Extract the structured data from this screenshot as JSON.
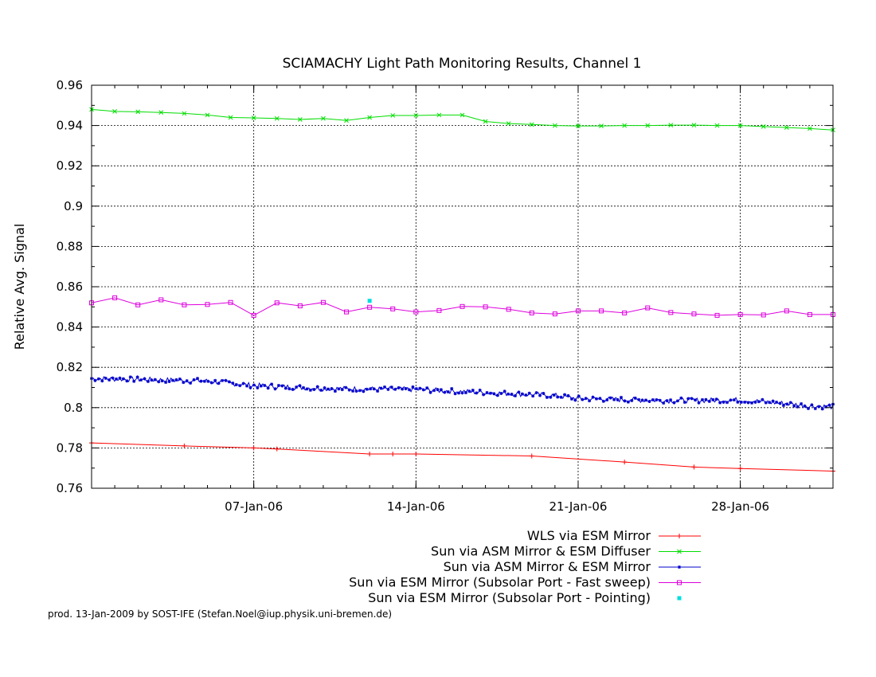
{
  "chart_data": {
    "type": "line",
    "title": "SCIAMACHY Light Path Monitoring Results, Channel 1",
    "ylabel": "Relative Avg. Signal",
    "xlabel": "",
    "x_axis": "date",
    "xlim": [
      "2005-12-31",
      "2006-02-01"
    ],
    "ylim": [
      0.76,
      0.96
    ],
    "x_ticks": [
      {
        "date": "2006-01-07",
        "label": "07-Jan-06"
      },
      {
        "date": "2006-01-14",
        "label": "14-Jan-06"
      },
      {
        "date": "2006-01-21",
        "label": "21-Jan-06"
      },
      {
        "date": "2006-01-28",
        "label": "28-Jan-06"
      }
    ],
    "y_ticks": [
      "0.76",
      "0.78",
      "0.8",
      "0.82",
      "0.84",
      "0.86",
      "0.88",
      "0.9",
      "0.92",
      "0.94",
      "0.96"
    ],
    "grid": true,
    "legend_position": "bottom-right",
    "series": [
      {
        "name": "WLS via ESM Mirror",
        "color": "#ff0000",
        "marker": "plus",
        "points": [
          [
            "2005-12-31",
            0.7825
          ],
          [
            "2006-01-04",
            0.781
          ],
          [
            "2006-01-07",
            0.78
          ],
          [
            "2006-01-08",
            0.7795
          ],
          [
            "2006-01-12",
            0.777
          ],
          [
            "2006-01-13",
            0.777
          ],
          [
            "2006-01-14",
            0.777
          ],
          [
            "2006-01-19",
            0.776
          ],
          [
            "2006-01-23",
            0.773
          ],
          [
            "2006-01-26",
            0.7705
          ],
          [
            "2006-01-28",
            0.7698
          ],
          [
            "2006-02-01",
            0.7685
          ]
        ]
      },
      {
        "name": "Sun via ASM Mirror & ESM Diffuser",
        "color": "#00dd00",
        "marker": "cross",
        "points": [
          [
            "2005-12-31",
            0.948
          ],
          [
            "2006-01-01",
            0.947
          ],
          [
            "2006-01-02",
            0.9468
          ],
          [
            "2006-01-03",
            0.9465
          ],
          [
            "2006-01-04",
            0.946
          ],
          [
            "2006-01-05",
            0.9452
          ],
          [
            "2006-01-06",
            0.944
          ],
          [
            "2006-01-07",
            0.9438
          ],
          [
            "2006-01-08",
            0.9435
          ],
          [
            "2006-01-09",
            0.943
          ],
          [
            "2006-01-10",
            0.9435
          ],
          [
            "2006-01-11",
            0.9425
          ],
          [
            "2006-01-12",
            0.944
          ],
          [
            "2006-01-13",
            0.945
          ],
          [
            "2006-01-14",
            0.945
          ],
          [
            "2006-01-15",
            0.9452
          ],
          [
            "2006-01-16",
            0.9452
          ],
          [
            "2006-01-17",
            0.942
          ],
          [
            "2006-01-18",
            0.941
          ],
          [
            "2006-01-19",
            0.9405
          ],
          [
            "2006-01-20",
            0.94
          ],
          [
            "2006-01-21",
            0.9398
          ],
          [
            "2006-01-22",
            0.9398
          ],
          [
            "2006-01-23",
            0.94
          ],
          [
            "2006-01-24",
            0.94
          ],
          [
            "2006-01-25",
            0.9402
          ],
          [
            "2006-01-26",
            0.9402
          ],
          [
            "2006-01-27",
            0.94
          ],
          [
            "2006-01-28",
            0.94
          ],
          [
            "2006-01-29",
            0.9395
          ],
          [
            "2006-01-30",
            0.939
          ],
          [
            "2006-01-31",
            0.9385
          ],
          [
            "2006-02-01",
            0.9378
          ]
        ]
      },
      {
        "name": "Sun via ASM Mirror & ESM Mirror",
        "color": "#0000cc",
        "marker": "star",
        "trend": [
          [
            "2005-12-31",
            0.8145
          ],
          [
            "2006-01-05",
            0.8132
          ],
          [
            "2006-01-07",
            0.811
          ],
          [
            "2006-01-10",
            0.8095
          ],
          [
            "2006-01-14",
            0.809
          ],
          [
            "2006-01-17",
            0.8075
          ],
          [
            "2006-01-20",
            0.806
          ],
          [
            "2006-01-21",
            0.8045
          ],
          [
            "2006-01-25",
            0.8035
          ],
          [
            "2006-01-28",
            0.8038
          ],
          [
            "2006-01-30",
            0.802
          ],
          [
            "2006-01-31",
            0.8008
          ],
          [
            "2006-02-01",
            0.8005
          ]
        ],
        "scatter": 0.0013
      },
      {
        "name": "Sun via ESM Mirror (Subsolar Port - Fast sweep)",
        "color": "#dd00dd",
        "marker": "square",
        "points": [
          [
            "2005-12-31",
            0.852
          ],
          [
            "2006-01-01",
            0.8545
          ],
          [
            "2006-01-02",
            0.851
          ],
          [
            "2006-01-03",
            0.8535
          ],
          [
            "2006-01-04",
            0.851
          ],
          [
            "2006-01-05",
            0.8512
          ],
          [
            "2006-01-06",
            0.8522
          ],
          [
            "2006-01-07",
            0.8458
          ],
          [
            "2006-01-08",
            0.852
          ],
          [
            "2006-01-09",
            0.8505
          ],
          [
            "2006-01-10",
            0.8522
          ],
          [
            "2006-01-11",
            0.8475
          ],
          [
            "2006-01-12",
            0.8498
          ],
          [
            "2006-01-13",
            0.849
          ],
          [
            "2006-01-14",
            0.8475
          ],
          [
            "2006-01-15",
            0.8482
          ],
          [
            "2006-01-16",
            0.8502
          ],
          [
            "2006-01-17",
            0.85
          ],
          [
            "2006-01-18",
            0.8488
          ],
          [
            "2006-01-19",
            0.847
          ],
          [
            "2006-01-20",
            0.8465
          ],
          [
            "2006-01-21",
            0.848
          ],
          [
            "2006-01-22",
            0.848
          ],
          [
            "2006-01-23",
            0.847
          ],
          [
            "2006-01-24",
            0.8495
          ],
          [
            "2006-01-25",
            0.8472
          ],
          [
            "2006-01-26",
            0.8465
          ],
          [
            "2006-01-27",
            0.8458
          ],
          [
            "2006-01-28",
            0.8462
          ],
          [
            "2006-01-29",
            0.846
          ],
          [
            "2006-01-30",
            0.848
          ],
          [
            "2006-01-31",
            0.8462
          ],
          [
            "2006-02-01",
            0.8462
          ]
        ]
      },
      {
        "name": "Sun via ESM Mirror (Subsolar Port - Pointing)",
        "color": "#00dddd",
        "marker": "dot",
        "points": [
          [
            "2006-01-12",
            0.853
          ]
        ]
      }
    ]
  },
  "footer": "prod. 13-Jan-2009 by SOST-IFE (Stefan.Noel@iup.physik.uni-bremen.de)"
}
